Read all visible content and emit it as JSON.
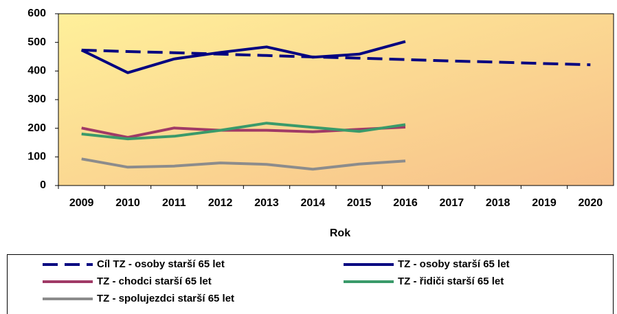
{
  "chart_data": {
    "type": "line",
    "x_label": "Rok",
    "categories": [
      "2009",
      "2010",
      "2011",
      "2012",
      "2013",
      "2014",
      "2015",
      "2016",
      "2017",
      "2018",
      "2019",
      "2020"
    ],
    "ylim": [
      0,
      600
    ],
    "yticks": [
      0,
      100,
      200,
      300,
      400,
      500,
      600
    ],
    "grid": false,
    "legend": "bottom",
    "series": [
      {
        "name": "Cíl TZ - osoby starší 65 let",
        "color": "#000080",
        "dash": true,
        "values": [
          473,
          468,
          464,
          459,
          454,
          449,
          445,
          440,
          435,
          431,
          426,
          422
        ]
      },
      {
        "name": "TZ - osoby starší 65 let",
        "color": "#000080",
        "dash": false,
        "values": [
          473,
          394,
          442,
          465,
          484,
          448,
          459,
          503,
          null,
          null,
          null,
          null
        ]
      },
      {
        "name": "TZ - chodci starší 65 let",
        "color": "#a03a66",
        "dash": false,
        "values": [
          201,
          168,
          201,
          193,
          193,
          188,
          196,
          204,
          null,
          null,
          null,
          null
        ]
      },
      {
        "name": "TZ - řidiči starší 65 let",
        "color": "#3a9a6a",
        "dash": false,
        "values": [
          180,
          163,
          172,
          193,
          218,
          203,
          189,
          213,
          null,
          null,
          null,
          null
        ]
      },
      {
        "name": "TZ - spolujezdci starší 65 let",
        "color": "#8c8c8c",
        "dash": false,
        "values": [
          93,
          64,
          68,
          79,
          74,
          57,
          75,
          86,
          null,
          null,
          null,
          null
        ]
      }
    ]
  }
}
